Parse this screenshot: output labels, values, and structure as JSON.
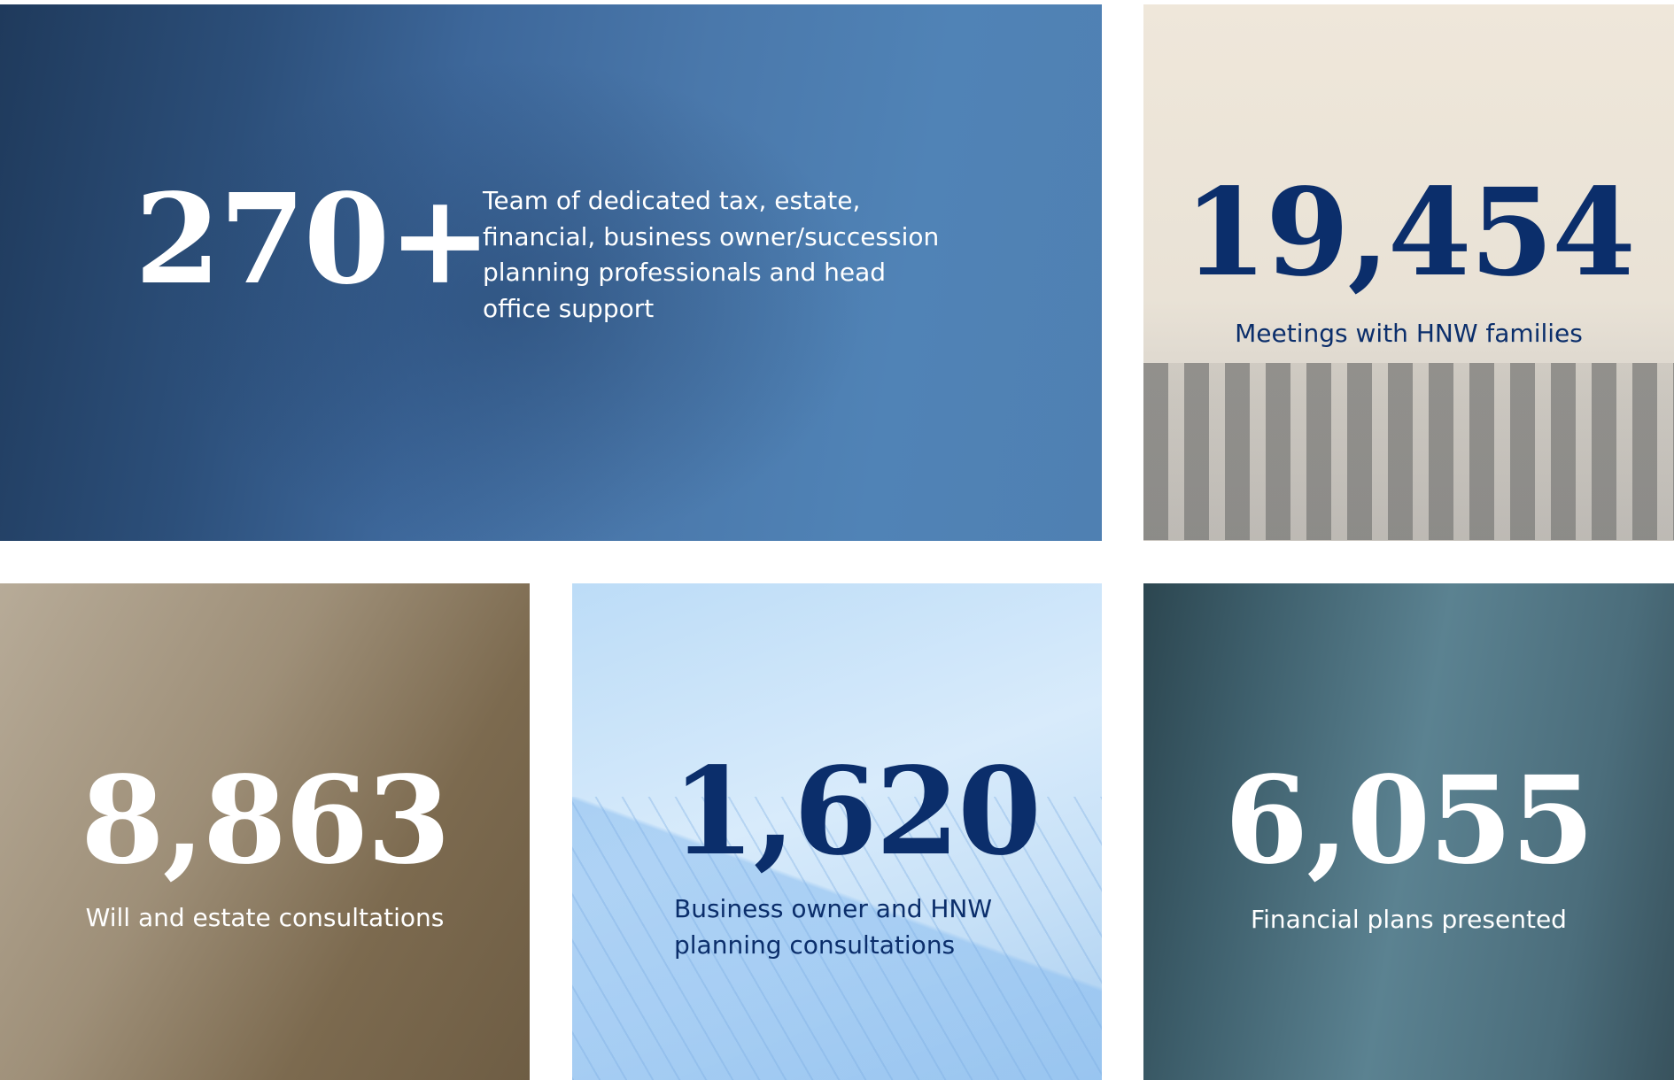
{
  "stats": [
    {
      "value": "270+",
      "label": "Team of dedicated tax, estate, financial, business owner/succession planning professionals and head office support"
    },
    {
      "value": "19,454",
      "label": "Meetings with HNW families"
    },
    {
      "value": "8,863",
      "label": "Will and estate consultations"
    },
    {
      "value": "1,620",
      "label": "Business owner and HNW planning consultations"
    },
    {
      "value": "6,055",
      "label": "Financial plans presented"
    }
  ],
  "colors": {
    "navy": "#0b2e6b",
    "white": "#ffffff"
  }
}
